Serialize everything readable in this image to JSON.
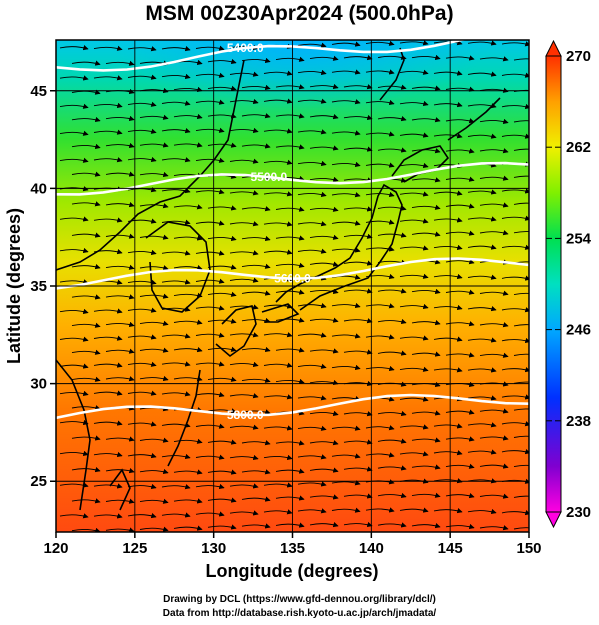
{
  "title": "MSM 00Z30Apr2024 (500.0hPa)",
  "xaxis": {
    "label": "Longitude (degrees)",
    "range": [
      120,
      150
    ],
    "ticks": [
      "120",
      "125",
      "130",
      "135",
      "140",
      "145",
      "150"
    ]
  },
  "yaxis": {
    "label": "Latitude  (degrees)",
    "range": [
      22.4,
      47.6
    ],
    "ticks": [
      "25",
      "30",
      "35",
      "40",
      "45"
    ]
  },
  "colorbar": {
    "range": [
      230,
      270
    ],
    "ticks": [
      "270",
      "262",
      "254",
      "246",
      "238",
      "230"
    ],
    "colors": [
      "#ff00ff",
      "#5a00c8",
      "#0000ff",
      "#00a0ff",
      "#00e8d0",
      "#00e060",
      "#80ff00",
      "#e8e800",
      "#ffa000",
      "#ff4000"
    ]
  },
  "contours": [
    {
      "label": "5400.0",
      "lat_at_west": 46.2
    },
    {
      "label": "5500.0",
      "lat_at_west": 40.0
    },
    {
      "label": "5600.0",
      "lat_at_west": 35.2
    },
    {
      "label": "5800.0",
      "lat_at_west": 28.3
    }
  ],
  "footer": {
    "line1": "Drawing by DCL (https://www.gfd-dennou.org/library/dcl/)",
    "line2": "Data from http://database.rish.kyoto-u.ac.jp/arch/jmadata/"
  }
}
